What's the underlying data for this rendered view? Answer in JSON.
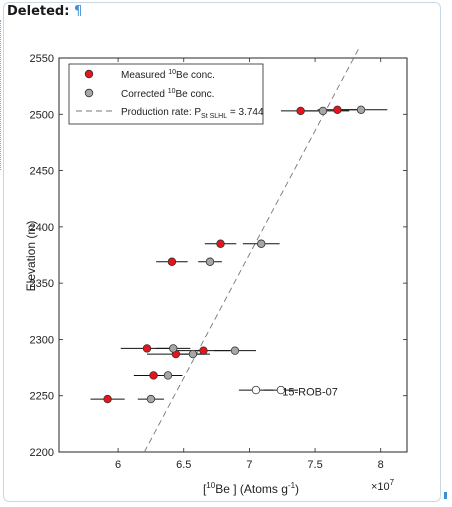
{
  "panel": {
    "deleted_label": "Deleted:",
    "pilcrow": "¶"
  },
  "chart_data": {
    "type": "scatter",
    "xlabel_bracket_open": "[",
    "xlabel_sup": "10",
    "xlabel_main": "Be ] (Atoms g",
    "xlabel_exp": "-1",
    "xlabel_close": ")",
    "ylabel": "Elevation (m)",
    "x_multiplier": "×10",
    "x_multiplier_exp": "7",
    "xlim": [
      5.55,
      8.2
    ],
    "ylim": [
      2200,
      2550
    ],
    "xticks": [
      6,
      6.5,
      7,
      7.5,
      8
    ],
    "xtick_labels": [
      "6",
      "6.5",
      "7",
      "7.5",
      "8"
    ],
    "yticks": [
      2200,
      2250,
      2300,
      2350,
      2400,
      2450,
      2500,
      2550
    ],
    "ytick_labels": [
      "2200",
      "2250",
      "2300",
      "2350",
      "2400",
      "2450",
      "2500",
      "2550"
    ],
    "grid": false,
    "legend_position": "top-left",
    "legend": {
      "measured_pre": "Measured ",
      "measured_sup": "10",
      "measured_post": "Be conc.",
      "corrected_pre": "Corrected ",
      "corrected_sup": "10",
      "corrected_post": "Be conc.",
      "production_pre": "Production rate: P",
      "production_sub": "St SLHL",
      "production_post": " = 3.744"
    },
    "series": [
      {
        "name": "Measured 10Be conc.",
        "color": "#e8141d",
        "points": [
          {
            "x": 5.92,
            "y": 2247,
            "xerr": 0.13
          },
          {
            "x": 6.27,
            "y": 2268,
            "xerr": 0.15
          },
          {
            "x": 6.22,
            "y": 2292,
            "xerr": 0.2
          },
          {
            "x": 6.44,
            "y": 2287,
            "xerr": 0.22
          },
          {
            "x": 6.65,
            "y": 2290,
            "xerr": 0.2
          },
          {
            "x": 6.41,
            "y": 2369,
            "xerr": 0.12
          },
          {
            "x": 6.78,
            "y": 2385,
            "xerr": 0.12
          },
          {
            "x": 7.39,
            "y": 2503,
            "xerr": 0.15
          },
          {
            "x": 7.67,
            "y": 2504,
            "xerr": 0.15
          }
        ]
      },
      {
        "name": "Corrected 10Be conc.",
        "color": "#a6a6a6",
        "points": [
          {
            "x": 6.25,
            "y": 2247,
            "xerr": 0.1
          },
          {
            "x": 6.38,
            "y": 2268,
            "xerr": 0.11
          },
          {
            "x": 6.42,
            "y": 2292,
            "xerr": 0.13
          },
          {
            "x": 6.57,
            "y": 2287,
            "xerr": 0.13
          },
          {
            "x": 6.89,
            "y": 2290,
            "xerr": 0.16
          },
          {
            "x": 6.7,
            "y": 2369,
            "xerr": 0.09
          },
          {
            "x": 7.09,
            "y": 2385,
            "xerr": 0.14
          },
          {
            "x": 7.56,
            "y": 2503,
            "xerr": 0.2
          },
          {
            "x": 7.85,
            "y": 2504,
            "xerr": 0.2
          }
        ]
      },
      {
        "name": "15-ROB-07",
        "color": "#ffffff",
        "points": [
          {
            "x": 7.05,
            "y": 2255,
            "xerr": 0.13
          },
          {
            "x": 7.24,
            "y": 2255,
            "xerr": 0.13
          }
        ]
      }
    ],
    "production_line": {
      "x": [
        6.2,
        7.84
      ],
      "y": [
        2200,
        2560
      ]
    },
    "annotation": {
      "text": "15-ROB-07",
      "x": 7.25,
      "y": 2250
    }
  }
}
